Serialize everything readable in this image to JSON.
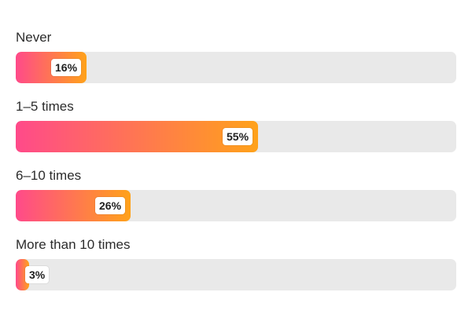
{
  "chart_data": {
    "type": "bar",
    "orientation": "horizontal",
    "categories": [
      "Never",
      "1–5 times",
      "6–10 times",
      "More than 10 times"
    ],
    "values": [
      16,
      55,
      26,
      3
    ],
    "value_labels": [
      "16%",
      "55%",
      "26%",
      "3%"
    ],
    "unit": "%",
    "xlim": [
      0,
      100
    ],
    "grid": false,
    "legend": "none",
    "colors": {
      "gradient_start": "#ff4a8a",
      "gradient_end": "#ffa21a",
      "track": "#e9e9e9",
      "label_text": "#2c2c2c"
    }
  }
}
